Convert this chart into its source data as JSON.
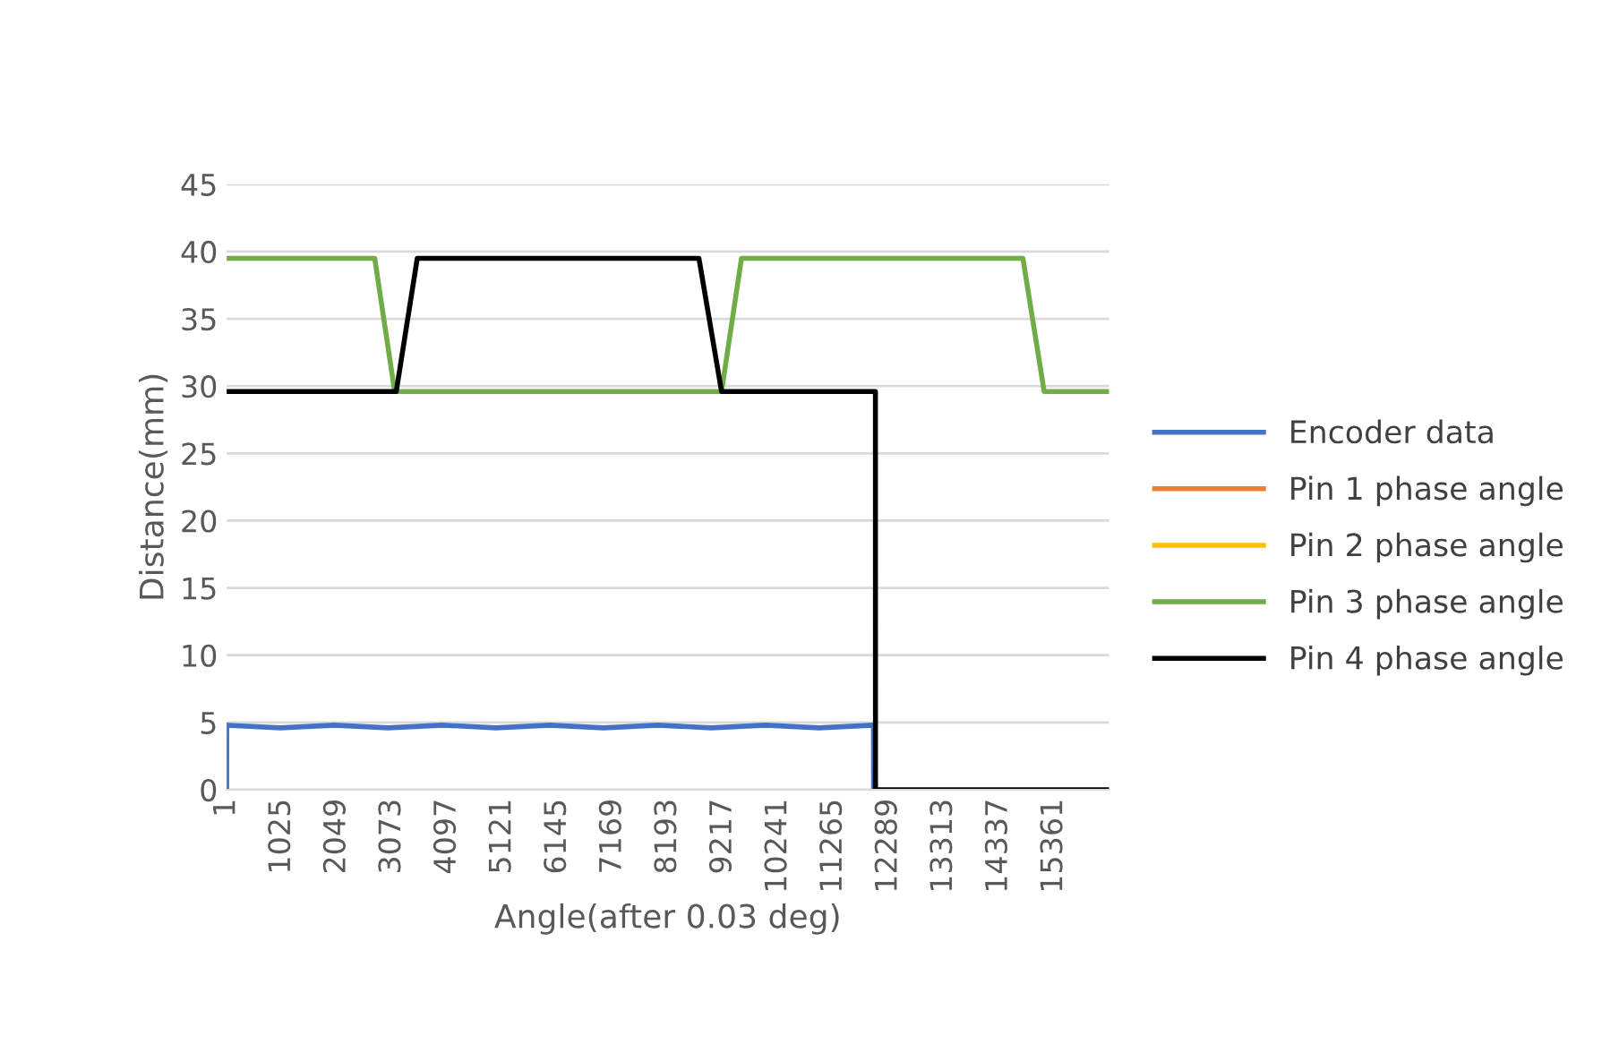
{
  "chart_data": {
    "type": "line",
    "xlabel": "Angle(after 0.03 deg)",
    "ylabel": "Distance(mm)",
    "xlim": [
      1,
      16384
    ],
    "xticks": [
      1,
      1025,
      2049,
      3073,
      4097,
      5121,
      6145,
      7169,
      8193,
      9217,
      10241,
      11265,
      12289,
      13313,
      14337,
      15361
    ],
    "ylim": [
      0,
      45
    ],
    "yticks": [
      0,
      5,
      10,
      15,
      20,
      25,
      30,
      35,
      40,
      45
    ],
    "grid": "y",
    "legend": "right",
    "marker": "none",
    "line_style": "solid",
    "series": [
      {
        "name": "Encoder data",
        "color": "#4472c4",
        "x": [
          1,
          2,
          1000,
          2000,
          3000,
          4000,
          5000,
          6000,
          7000,
          8000,
          9000,
          10000,
          11000,
          12010,
          12013
        ],
        "values": [
          0,
          4.8,
          4.6,
          4.8,
          4.6,
          4.8,
          4.6,
          4.8,
          4.6,
          4.8,
          4.6,
          4.8,
          4.6,
          4.8,
          0
        ]
      },
      {
        "name": "Pin 1 phase angle",
        "color": "#ed7d31",
        "values": [
          null
        ]
      },
      {
        "name": "Pin 2 phase angle",
        "color": "#ffc000",
        "values": [
          null
        ]
      },
      {
        "name": "Pin 3 phase angle",
        "color": "#70ad47",
        "x": [
          1,
          2750,
          3120,
          9190,
          9560,
          14785,
          15180,
          16384
        ],
        "values": [
          39.5,
          39.5,
          29.6,
          29.6,
          39.5,
          39.5,
          29.6,
          29.6
        ]
      },
      {
        "name": "Pin 4 phase angle",
        "color": "#000000",
        "x": [
          1,
          3150,
          3540,
          8770,
          9190,
          12047,
          12048,
          16384
        ],
        "values": [
          29.6,
          29.6,
          39.5,
          39.5,
          29.6,
          29.6,
          0,
          0
        ]
      }
    ]
  }
}
